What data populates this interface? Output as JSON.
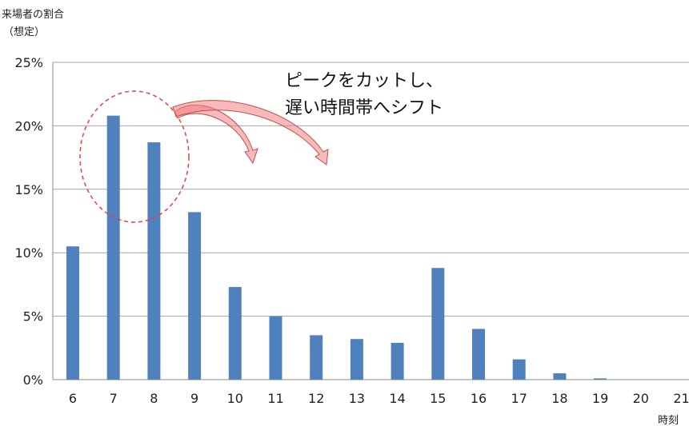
{
  "chart_data": {
    "type": "bar",
    "ylabel": [
      "来場者の割合",
      "（想定）"
    ],
    "xlabel": "時刻",
    "categories": [
      "6",
      "7",
      "8",
      "9",
      "10",
      "11",
      "12",
      "13",
      "14",
      "15",
      "16",
      "17",
      "18",
      "19",
      "20",
      "21"
    ],
    "values": [
      10.5,
      20.8,
      18.7,
      13.2,
      7.3,
      5.0,
      3.5,
      3.2,
      2.9,
      8.8,
      4.0,
      1.6,
      0.5,
      0.1,
      0,
      0
    ],
    "ylim": [
      0,
      25
    ],
    "yticks": [
      "0%",
      "5%",
      "10%",
      "15%",
      "20%",
      "25%"
    ],
    "grid": true,
    "bar_color": "#4f81bd",
    "annotation": {
      "lines": [
        "ピークをカットし、",
        "遅い時間帯へシフト"
      ],
      "highlight_color": "#e8403c",
      "arrow_color": "#f08080"
    }
  }
}
